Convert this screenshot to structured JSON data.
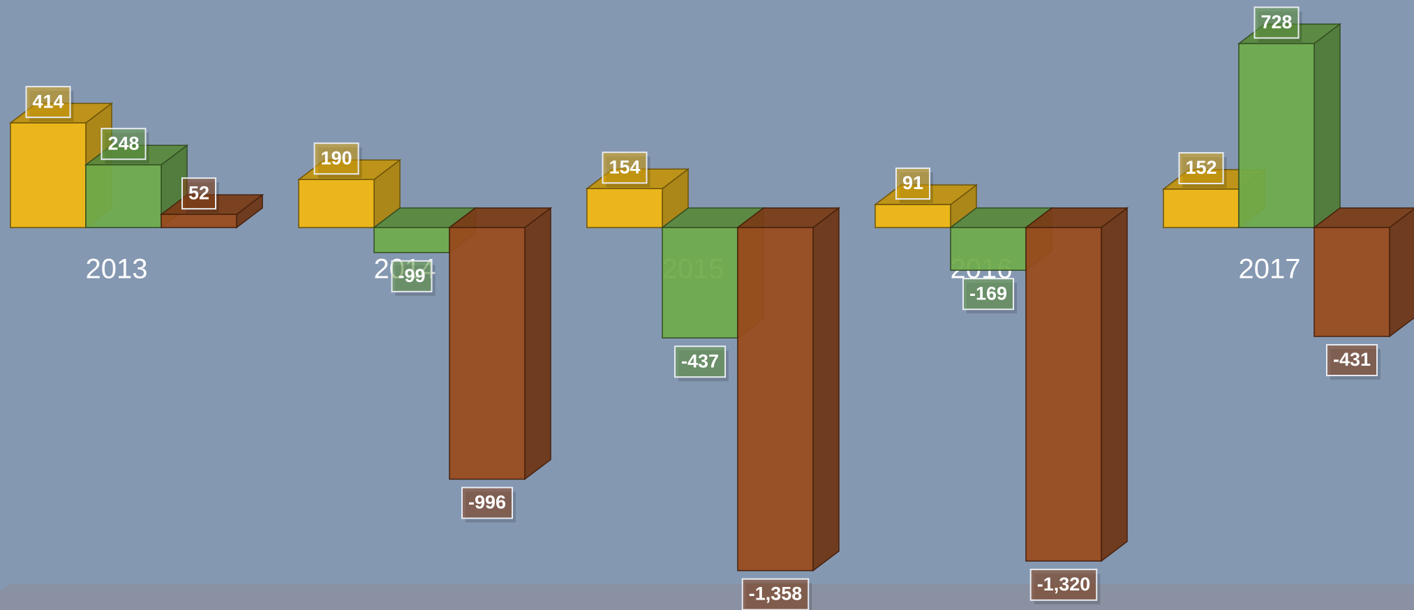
{
  "chart_data": {
    "type": "bar3d",
    "categories": [
      "2013",
      "2014",
      "2015",
      "2016",
      "2017"
    ],
    "series": [
      {
        "color": "#f2b810",
        "values": [
          414,
          190,
          154,
          91,
          152
        ]
      },
      {
        "color": "#6fab4a",
        "values": [
          248,
          -99,
          -437,
          -169,
          728
        ]
      },
      {
        "color": "#9a4a1c",
        "values": [
          52,
          -996,
          -1358,
          -1320,
          -431
        ],
        "value_labels": [
          "52",
          "-996",
          "-1,358",
          "-1,320",
          "-431"
        ]
      }
    ]
  }
}
